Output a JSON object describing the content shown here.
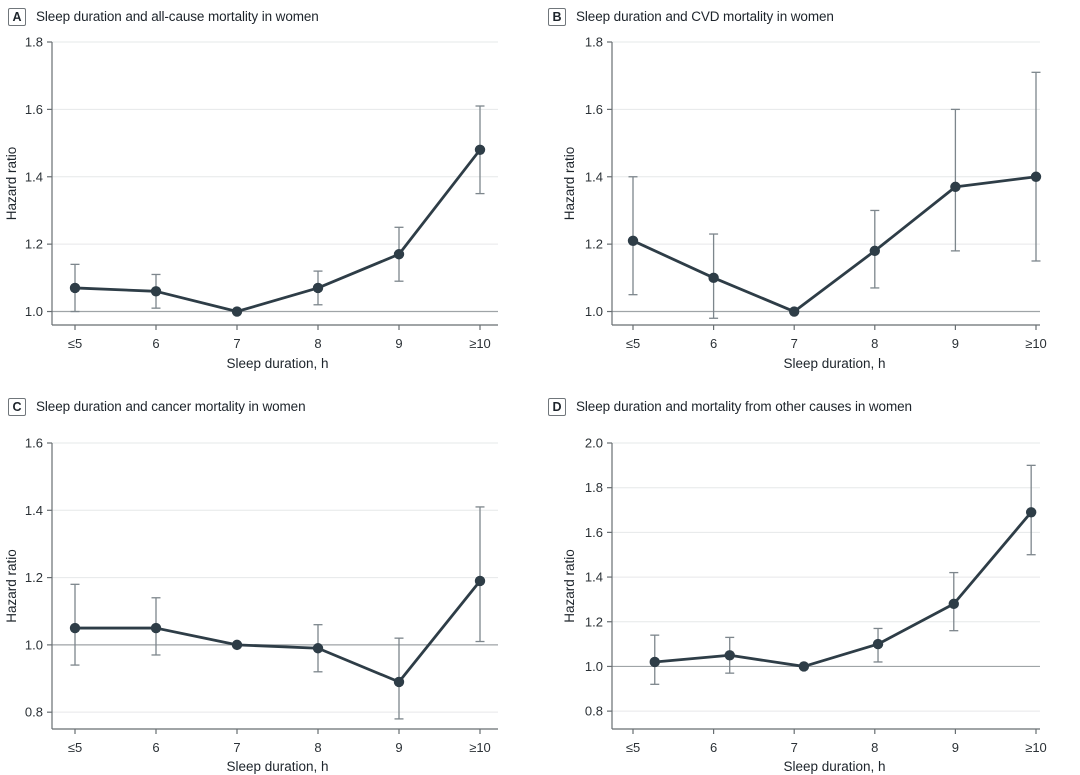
{
  "figure_name": "Sleep duration and mortality in women",
  "colors": {
    "series": "#2e3d47",
    "error_bar": "#7d868c",
    "gridline": "#e6e8e9",
    "reference_line": "#9fa4a7",
    "axis": "#686e72",
    "tick_text": "#2b3136",
    "title_text": "#1d242b"
  },
  "chart_data": [
    {
      "type": "line",
      "label": "A",
      "title": "Sleep duration and all-cause mortality in women",
      "xlabel": "Sleep duration, h",
      "ylabel": "Hazard ratio",
      "categories": [
        "≤5",
        "6",
        "7",
        "8",
        "9",
        "≥10"
      ],
      "values": [
        1.07,
        1.06,
        1.0,
        1.07,
        1.17,
        1.48
      ],
      "ci_low": [
        1.0,
        1.01,
        null,
        1.02,
        1.09,
        1.35
      ],
      "ci_high": [
        1.14,
        1.11,
        null,
        1.12,
        1.25,
        1.61
      ],
      "yticks": [
        1.0,
        1.2,
        1.4,
        1.6,
        1.8
      ],
      "ylim": [
        0.96,
        1.8
      ],
      "reference_line": 1.0,
      "grid": true,
      "legend": "none",
      "point_x_shift_frac": [
        0,
        0,
        0,
        0,
        0,
        0
      ]
    },
    {
      "type": "line",
      "label": "B",
      "title": "Sleep duration and CVD mortality in women",
      "xlabel": "Sleep duration, h",
      "ylabel": "Hazard ratio",
      "categories": [
        "≤5",
        "6",
        "7",
        "8",
        "9",
        "≥10"
      ],
      "values": [
        1.21,
        1.1,
        1.0,
        1.18,
        1.37,
        1.4
      ],
      "ci_low": [
        1.05,
        0.98,
        null,
        1.07,
        1.18,
        1.15
      ],
      "ci_high": [
        1.4,
        1.23,
        null,
        1.3,
        1.6,
        1.71
      ],
      "yticks": [
        1.0,
        1.2,
        1.4,
        1.6,
        1.8
      ],
      "ylim": [
        0.96,
        1.8
      ],
      "reference_line": 1.0,
      "grid": true,
      "legend": "none",
      "point_x_shift_frac": [
        0,
        0,
        0,
        0,
        0,
        0
      ]
    },
    {
      "type": "line",
      "label": "C",
      "title": "Sleep duration and cancer mortality in women",
      "xlabel": "Sleep duration, h",
      "ylabel": "Hazard ratio",
      "categories": [
        "≤5",
        "6",
        "7",
        "8",
        "9",
        "≥10"
      ],
      "values": [
        1.05,
        1.05,
        1.0,
        0.99,
        0.89,
        1.19
      ],
      "ci_low": [
        0.94,
        0.97,
        null,
        0.92,
        0.78,
        1.01
      ],
      "ci_high": [
        1.18,
        1.14,
        null,
        1.06,
        1.02,
        1.41
      ],
      "yticks": [
        0.8,
        1.0,
        1.2,
        1.4,
        1.6
      ],
      "ylim": [
        0.75,
        1.6
      ],
      "reference_line": 1.0,
      "grid": true,
      "legend": "none",
      "point_x_shift_frac": [
        0,
        0,
        0,
        0,
        0,
        0
      ]
    },
    {
      "type": "line",
      "label": "D",
      "title": "Sleep duration and mortality from other causes in women",
      "xlabel": "Sleep duration, h",
      "ylabel": "Hazard ratio",
      "categories": [
        "≤5",
        "6",
        "7",
        "8",
        "9",
        "≥10"
      ],
      "values": [
        1.02,
        1.05,
        1.0,
        1.1,
        1.28,
        1.69
      ],
      "ci_low": [
        0.92,
        0.97,
        null,
        1.02,
        1.16,
        1.5
      ],
      "ci_high": [
        1.14,
        1.13,
        null,
        1.17,
        1.42,
        1.9
      ],
      "yticks": [
        0.8,
        1.0,
        1.2,
        1.4,
        1.6,
        1.8,
        2.0
      ],
      "ylim": [
        0.72,
        2.0
      ],
      "reference_line": 1.0,
      "grid": true,
      "legend": "none",
      "point_x_shift_frac": [
        0.27,
        0.2,
        0.12,
        0.04,
        -0.02,
        -0.06
      ]
    }
  ]
}
